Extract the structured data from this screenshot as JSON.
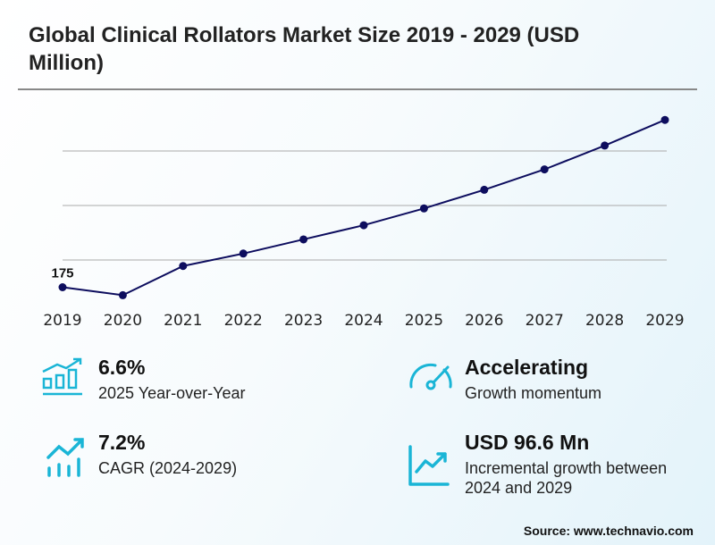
{
  "title": "Global Clinical Rollators Market Size 2019 - 2029 (USD Million)",
  "chart_data": {
    "type": "line",
    "title": "Global Clinical Rollators Market Size 2019 - 2029 (USD Million)",
    "categories": [
      "2019",
      "2020",
      "2021",
      "2022",
      "2023",
      "2024",
      "2025",
      "2026",
      "2027",
      "2028",
      "2029"
    ],
    "values": [
      175,
      167.7,
      194.5,
      205.9,
      218.9,
      231.9,
      247.3,
      264.4,
      283.1,
      305.0,
      328.5
    ],
    "data_labels": [
      {
        "category": "2019",
        "label": "175"
      }
    ],
    "ylim": [
      150,
      350
    ],
    "gridlines": [
      200,
      250,
      300
    ],
    "grid": true,
    "line_color": "#0d0d5e"
  },
  "stats": [
    {
      "value": "6.6%",
      "label": "2025 Year-over-Year",
      "icon": "bar-chart-growth-icon"
    },
    {
      "value": "Accelerating",
      "label": "Growth momentum",
      "icon": "speedometer-icon"
    },
    {
      "value": "7.2%",
      "label": "CAGR (2024-2029)",
      "icon": "trend-up-bars-icon"
    },
    {
      "value": "USD 96.6 Mn",
      "label": "Incremental growth between 2024 and 2029",
      "icon": "line-chart-up-icon"
    }
  ],
  "accent_color": "#1ab5d6",
  "source": "Source: www.technavio.com"
}
